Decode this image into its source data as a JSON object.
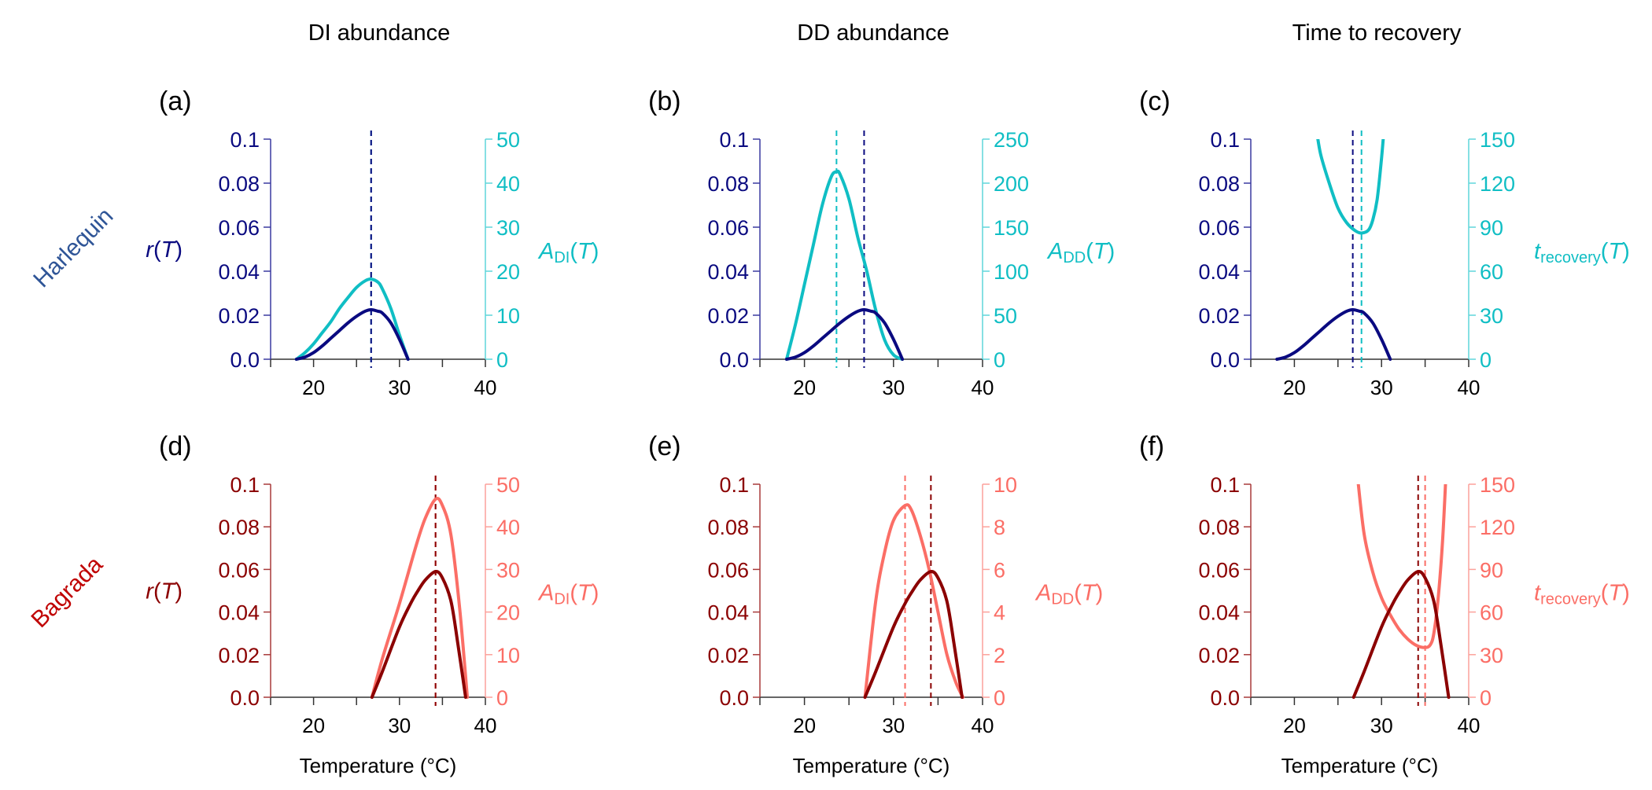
{
  "column_headings": [
    "DI abundance",
    "DD abundance",
    "Time to recovery"
  ],
  "row_labels": [
    {
      "text": "Harlequin",
      "color": "#2f5597"
    },
    {
      "text": "Bagrada",
      "color": "#c00000"
    }
  ],
  "x_axis_label": "Temperature (°C)",
  "colors": {
    "harlequin_r": "#0a0a80",
    "harlequin_r_axis": "#3a3aa0",
    "harlequin_metric": "#10bec4",
    "harlequin_metric_axis": "#5fd6da",
    "bagrada_r": "#8b0000",
    "bagrada_r_axis": "#a83a3a",
    "bagrada_metric": "#fb6e66",
    "bagrada_metric_axis": "#fca19b"
  },
  "chart_data": [
    {
      "panel": "(a)",
      "type": "line",
      "species": "Harlequin",
      "row": 0,
      "col": 0,
      "xlim": [
        15,
        40
      ],
      "x_ticks": [
        15,
        20,
        25,
        30,
        35,
        40
      ],
      "x_tick_labels": [
        "20",
        "30",
        "40"
      ],
      "x_tick_label_values": [
        20,
        30,
        40
      ],
      "left_axis": {
        "label_main": "r",
        "label_sub": "",
        "label_arg": "T",
        "ylim": [
          0,
          0.1
        ],
        "ticks": [
          0,
          0.02,
          0.04,
          0.06,
          0.08,
          0.1
        ],
        "tick_labels": [
          "0.0",
          "0.02",
          "0.04",
          "0.06",
          "0.08",
          "0.1"
        ]
      },
      "right_axis": {
        "label_main": "A",
        "label_sub": "DI",
        "label_arg": "T",
        "ylim": [
          0,
          50
        ],
        "ticks": [
          0,
          10,
          20,
          30,
          40,
          50
        ],
        "tick_labels": [
          "0",
          "10",
          "20",
          "30",
          "40",
          "50"
        ]
      },
      "series": [
        {
          "name": "r(T)",
          "axis": "left",
          "x": [
            18,
            19,
            20,
            21,
            22,
            23,
            24,
            25,
            26,
            26.7,
            27.5,
            28,
            29,
            30,
            31
          ],
          "y": [
            0,
            0.001,
            0.003,
            0.006,
            0.0095,
            0.013,
            0.0165,
            0.0195,
            0.0218,
            0.0225,
            0.0218,
            0.021,
            0.0165,
            0.009,
            0
          ]
        },
        {
          "name": "A_DI(T)",
          "axis": "right",
          "x": [
            18,
            19,
            20,
            21,
            22,
            23,
            24,
            25,
            26,
            26.7,
            27.5,
            28,
            29,
            30,
            31
          ],
          "y": [
            0,
            1.5,
            3.5,
            6,
            8.5,
            11.5,
            14,
            16.3,
            17.8,
            18.2,
            17.5,
            16,
            11.5,
            5.5,
            0
          ]
        }
      ],
      "vlines": [
        {
          "x": 26.7,
          "series": "A_DI(T)"
        },
        {
          "x": 26.7,
          "series": "r(T)"
        }
      ]
    },
    {
      "panel": "(b)",
      "type": "line",
      "species": "Harlequin",
      "row": 0,
      "col": 1,
      "xlim": [
        15,
        40
      ],
      "x_ticks": [
        15,
        20,
        25,
        30,
        35,
        40
      ],
      "x_tick_labels": [
        "20",
        "30",
        "40"
      ],
      "x_tick_label_values": [
        20,
        30,
        40
      ],
      "left_axis": {
        "label_main": "",
        "label_sub": "",
        "label_arg": "",
        "ylim": [
          0,
          0.1
        ],
        "ticks": [
          0,
          0.02,
          0.04,
          0.06,
          0.08,
          0.1
        ],
        "tick_labels": [
          "0.0",
          "0.02",
          "0.04",
          "0.06",
          "0.08",
          "0.1"
        ]
      },
      "right_axis": {
        "label_main": "A",
        "label_sub": "DD",
        "label_arg": "T",
        "ylim": [
          0,
          250
        ],
        "ticks": [
          0,
          50,
          100,
          150,
          200,
          250
        ],
        "tick_labels": [
          "0",
          "50",
          "100",
          "150",
          "200",
          "250"
        ]
      },
      "series": [
        {
          "name": "r(T)",
          "axis": "left",
          "x": [
            18,
            19,
            20,
            21,
            22,
            23,
            24,
            25,
            26,
            26.7,
            27.5,
            28,
            29,
            30,
            31
          ],
          "y": [
            0,
            0.001,
            0.003,
            0.006,
            0.0095,
            0.013,
            0.0165,
            0.0195,
            0.0218,
            0.0225,
            0.0218,
            0.021,
            0.0165,
            0.009,
            0
          ]
        },
        {
          "name": "A_DD(T)",
          "axis": "right",
          "x": [
            18,
            19,
            20,
            21,
            22,
            23,
            23.6,
            24,
            25,
            26,
            27,
            28,
            29,
            30,
            31
          ],
          "y": [
            0,
            40,
            85,
            130,
            175,
            207,
            213,
            210,
            182,
            138,
            100,
            56,
            22,
            5,
            0
          ]
        }
      ],
      "vlines": [
        {
          "x": 23.6,
          "series": "A_DD(T)"
        },
        {
          "x": 26.7,
          "series": "r(T)"
        }
      ]
    },
    {
      "panel": "(c)",
      "type": "line",
      "species": "Harlequin",
      "row": 0,
      "col": 2,
      "xlim": [
        15,
        40
      ],
      "x_ticks": [
        15,
        20,
        25,
        30,
        35,
        40
      ],
      "x_tick_labels": [
        "20",
        "30",
        "40"
      ],
      "x_tick_label_values": [
        20,
        30,
        40
      ],
      "left_axis": {
        "label_main": "",
        "label_sub": "",
        "label_arg": "",
        "ylim": [
          0,
          0.1
        ],
        "ticks": [
          0,
          0.02,
          0.04,
          0.06,
          0.08,
          0.1
        ],
        "tick_labels": [
          "0.0",
          "0.02",
          "0.04",
          "0.06",
          "0.08",
          "0.1"
        ]
      },
      "right_axis": {
        "label_main": "t",
        "label_sub": "recovery",
        "label_arg": "T",
        "ylim": [
          0,
          150
        ],
        "ticks": [
          0,
          30,
          60,
          90,
          120,
          150
        ],
        "tick_labels": [
          "0",
          "30",
          "60",
          "90",
          "120",
          "150"
        ]
      },
      "series": [
        {
          "name": "r(T)",
          "axis": "left",
          "x": [
            18,
            19,
            20,
            21,
            22,
            23,
            24,
            25,
            26,
            26.7,
            27.5,
            28,
            29,
            30,
            31
          ],
          "y": [
            0,
            0.001,
            0.003,
            0.006,
            0.0095,
            0.013,
            0.0165,
            0.0195,
            0.0218,
            0.0225,
            0.0218,
            0.021,
            0.0165,
            0.009,
            0
          ]
        },
        {
          "name": "t_recovery(T)",
          "axis": "right",
          "x": [
            22.5,
            23,
            24,
            25,
            26,
            27,
            27.7,
            28.5,
            29,
            29.5,
            30,
            30.3
          ],
          "y": [
            158,
            140,
            120,
            103,
            93,
            87.5,
            86,
            88,
            95,
            109,
            137,
            158
          ]
        }
      ],
      "vlines": [
        {
          "x": 26.7,
          "series": "r(T)"
        },
        {
          "x": 27.7,
          "series": "t_recovery(T)"
        }
      ]
    },
    {
      "panel": "(d)",
      "type": "line",
      "species": "Bagrada",
      "row": 1,
      "col": 0,
      "xlim": [
        15,
        40
      ],
      "x_ticks": [
        15,
        20,
        25,
        30,
        35,
        40
      ],
      "x_tick_labels": [
        "20",
        "30",
        "40"
      ],
      "x_tick_label_values": [
        20,
        30,
        40
      ],
      "left_axis": {
        "label_main": "r",
        "label_sub": "",
        "label_arg": "T",
        "ylim": [
          0,
          0.1
        ],
        "ticks": [
          0,
          0.02,
          0.04,
          0.06,
          0.08,
          0.1
        ],
        "tick_labels": [
          "0.0",
          "0.02",
          "0.04",
          "0.06",
          "0.08",
          "0.1"
        ]
      },
      "right_axis": {
        "label_main": "A",
        "label_sub": "DI",
        "label_arg": "T",
        "ylim": [
          0,
          50
        ],
        "ticks": [
          0,
          10,
          20,
          30,
          40,
          50
        ],
        "tick_labels": [
          "0",
          "10",
          "20",
          "30",
          "40",
          "50"
        ]
      },
      "series": [
        {
          "name": "r(T)",
          "axis": "left",
          "x": [
            26.8,
            28,
            30,
            31.3,
            32,
            33,
            34.2,
            35,
            36,
            36.8,
            37.7
          ],
          "y": [
            0,
            0.012,
            0.033,
            0.044,
            0.049,
            0.055,
            0.059,
            0.056,
            0.045,
            0.025,
            0
          ]
        },
        {
          "name": "A_DI(T)",
          "axis": "right",
          "x": [
            26.8,
            28,
            30,
            32,
            33,
            34.2,
            35,
            36,
            37,
            37.9
          ],
          "y": [
            0,
            9,
            22,
            36,
            42,
            46.5,
            45,
            38,
            21,
            0
          ]
        }
      ],
      "vlines": [
        {
          "x": 34.2,
          "series": "A_DI(T)"
        },
        {
          "x": 34.2,
          "series": "r(T)"
        }
      ]
    },
    {
      "panel": "(e)",
      "type": "line",
      "species": "Bagrada",
      "row": 1,
      "col": 1,
      "xlim": [
        15,
        40
      ],
      "x_ticks": [
        15,
        20,
        25,
        30,
        35,
        40
      ],
      "x_tick_labels": [
        "20",
        "30",
        "40"
      ],
      "x_tick_label_values": [
        20,
        30,
        40
      ],
      "left_axis": {
        "label_main": "",
        "label_sub": "",
        "label_arg": "",
        "ylim": [
          0,
          0.1
        ],
        "ticks": [
          0,
          0.02,
          0.04,
          0.06,
          0.08,
          0.1
        ],
        "tick_labels": [
          "0.0",
          "0.02",
          "0.04",
          "0.06",
          "0.08",
          "0.1"
        ]
      },
      "right_axis": {
        "label_main": "A",
        "label_sub": "DD",
        "label_arg": "T",
        "ylim": [
          0,
          10
        ],
        "ticks": [
          0,
          2,
          4,
          6,
          8,
          10
        ],
        "tick_labels": [
          "0",
          "2",
          "4",
          "6",
          "8",
          "10"
        ]
      },
      "series": [
        {
          "name": "r(T)",
          "axis": "left",
          "x": [
            26.8,
            28,
            30,
            31.3,
            32,
            33,
            34.2,
            35,
            36,
            36.8,
            37.7
          ],
          "y": [
            0,
            0.012,
            0.033,
            0.044,
            0.049,
            0.055,
            0.059,
            0.056,
            0.045,
            0.025,
            0
          ]
        },
        {
          "name": "A_DD(T)",
          "axis": "right",
          "x": [
            26.8,
            28,
            29,
            30,
            31.3,
            32,
            33,
            34,
            35,
            36,
            37,
            37.8
          ],
          "y": [
            0,
            4.5,
            6.8,
            8.3,
            9.0,
            8.8,
            7.6,
            6.0,
            4.0,
            2.0,
            0.7,
            0
          ]
        }
      ],
      "vlines": [
        {
          "x": 31.3,
          "series": "A_DD(T)"
        },
        {
          "x": 34.2,
          "series": "r(T)"
        }
      ]
    },
    {
      "panel": "(f)",
      "type": "line",
      "species": "Bagrada",
      "row": 1,
      "col": 2,
      "xlim": [
        15,
        40
      ],
      "x_ticks": [
        15,
        20,
        25,
        30,
        35,
        40
      ],
      "x_tick_labels": [
        "20",
        "30",
        "40"
      ],
      "x_tick_label_values": [
        20,
        30,
        40
      ],
      "left_axis": {
        "label_main": "",
        "label_sub": "",
        "label_arg": "",
        "ylim": [
          0,
          0.1
        ],
        "ticks": [
          0,
          0.02,
          0.04,
          0.06,
          0.08,
          0.1
        ],
        "tick_labels": [
          "0.0",
          "0.02",
          "0.04",
          "0.06",
          "0.08",
          "0.1"
        ]
      },
      "right_axis": {
        "label_main": "t",
        "label_sub": "recovery",
        "label_arg": "T",
        "ylim": [
          0,
          150
        ],
        "ticks": [
          0,
          30,
          60,
          90,
          120,
          150
        ],
        "tick_labels": [
          "0",
          "30",
          "60",
          "90",
          "120",
          "150"
        ]
      },
      "series": [
        {
          "name": "r(T)",
          "axis": "left",
          "x": [
            26.8,
            28,
            30,
            31.3,
            32,
            33,
            34.2,
            35,
            36,
            36.8,
            37.7
          ],
          "y": [
            0,
            0.012,
            0.033,
            0.044,
            0.049,
            0.055,
            0.059,
            0.056,
            0.045,
            0.025,
            0
          ]
        },
        {
          "name": "t_recovery(T)",
          "axis": "right",
          "x": [
            27.2,
            28,
            29,
            30,
            31,
            32,
            33,
            34,
            35,
            35.6,
            36,
            36.5,
            37,
            37.4
          ],
          "y": [
            158,
            115,
            88,
            70,
            58,
            48,
            41,
            36.5,
            35,
            37,
            45,
            70,
            110,
            158
          ]
        }
      ],
      "vlines": [
        {
          "x": 34.2,
          "series": "r(T)"
        },
        {
          "x": 35.0,
          "series": "t_recovery(T)"
        }
      ]
    }
  ]
}
